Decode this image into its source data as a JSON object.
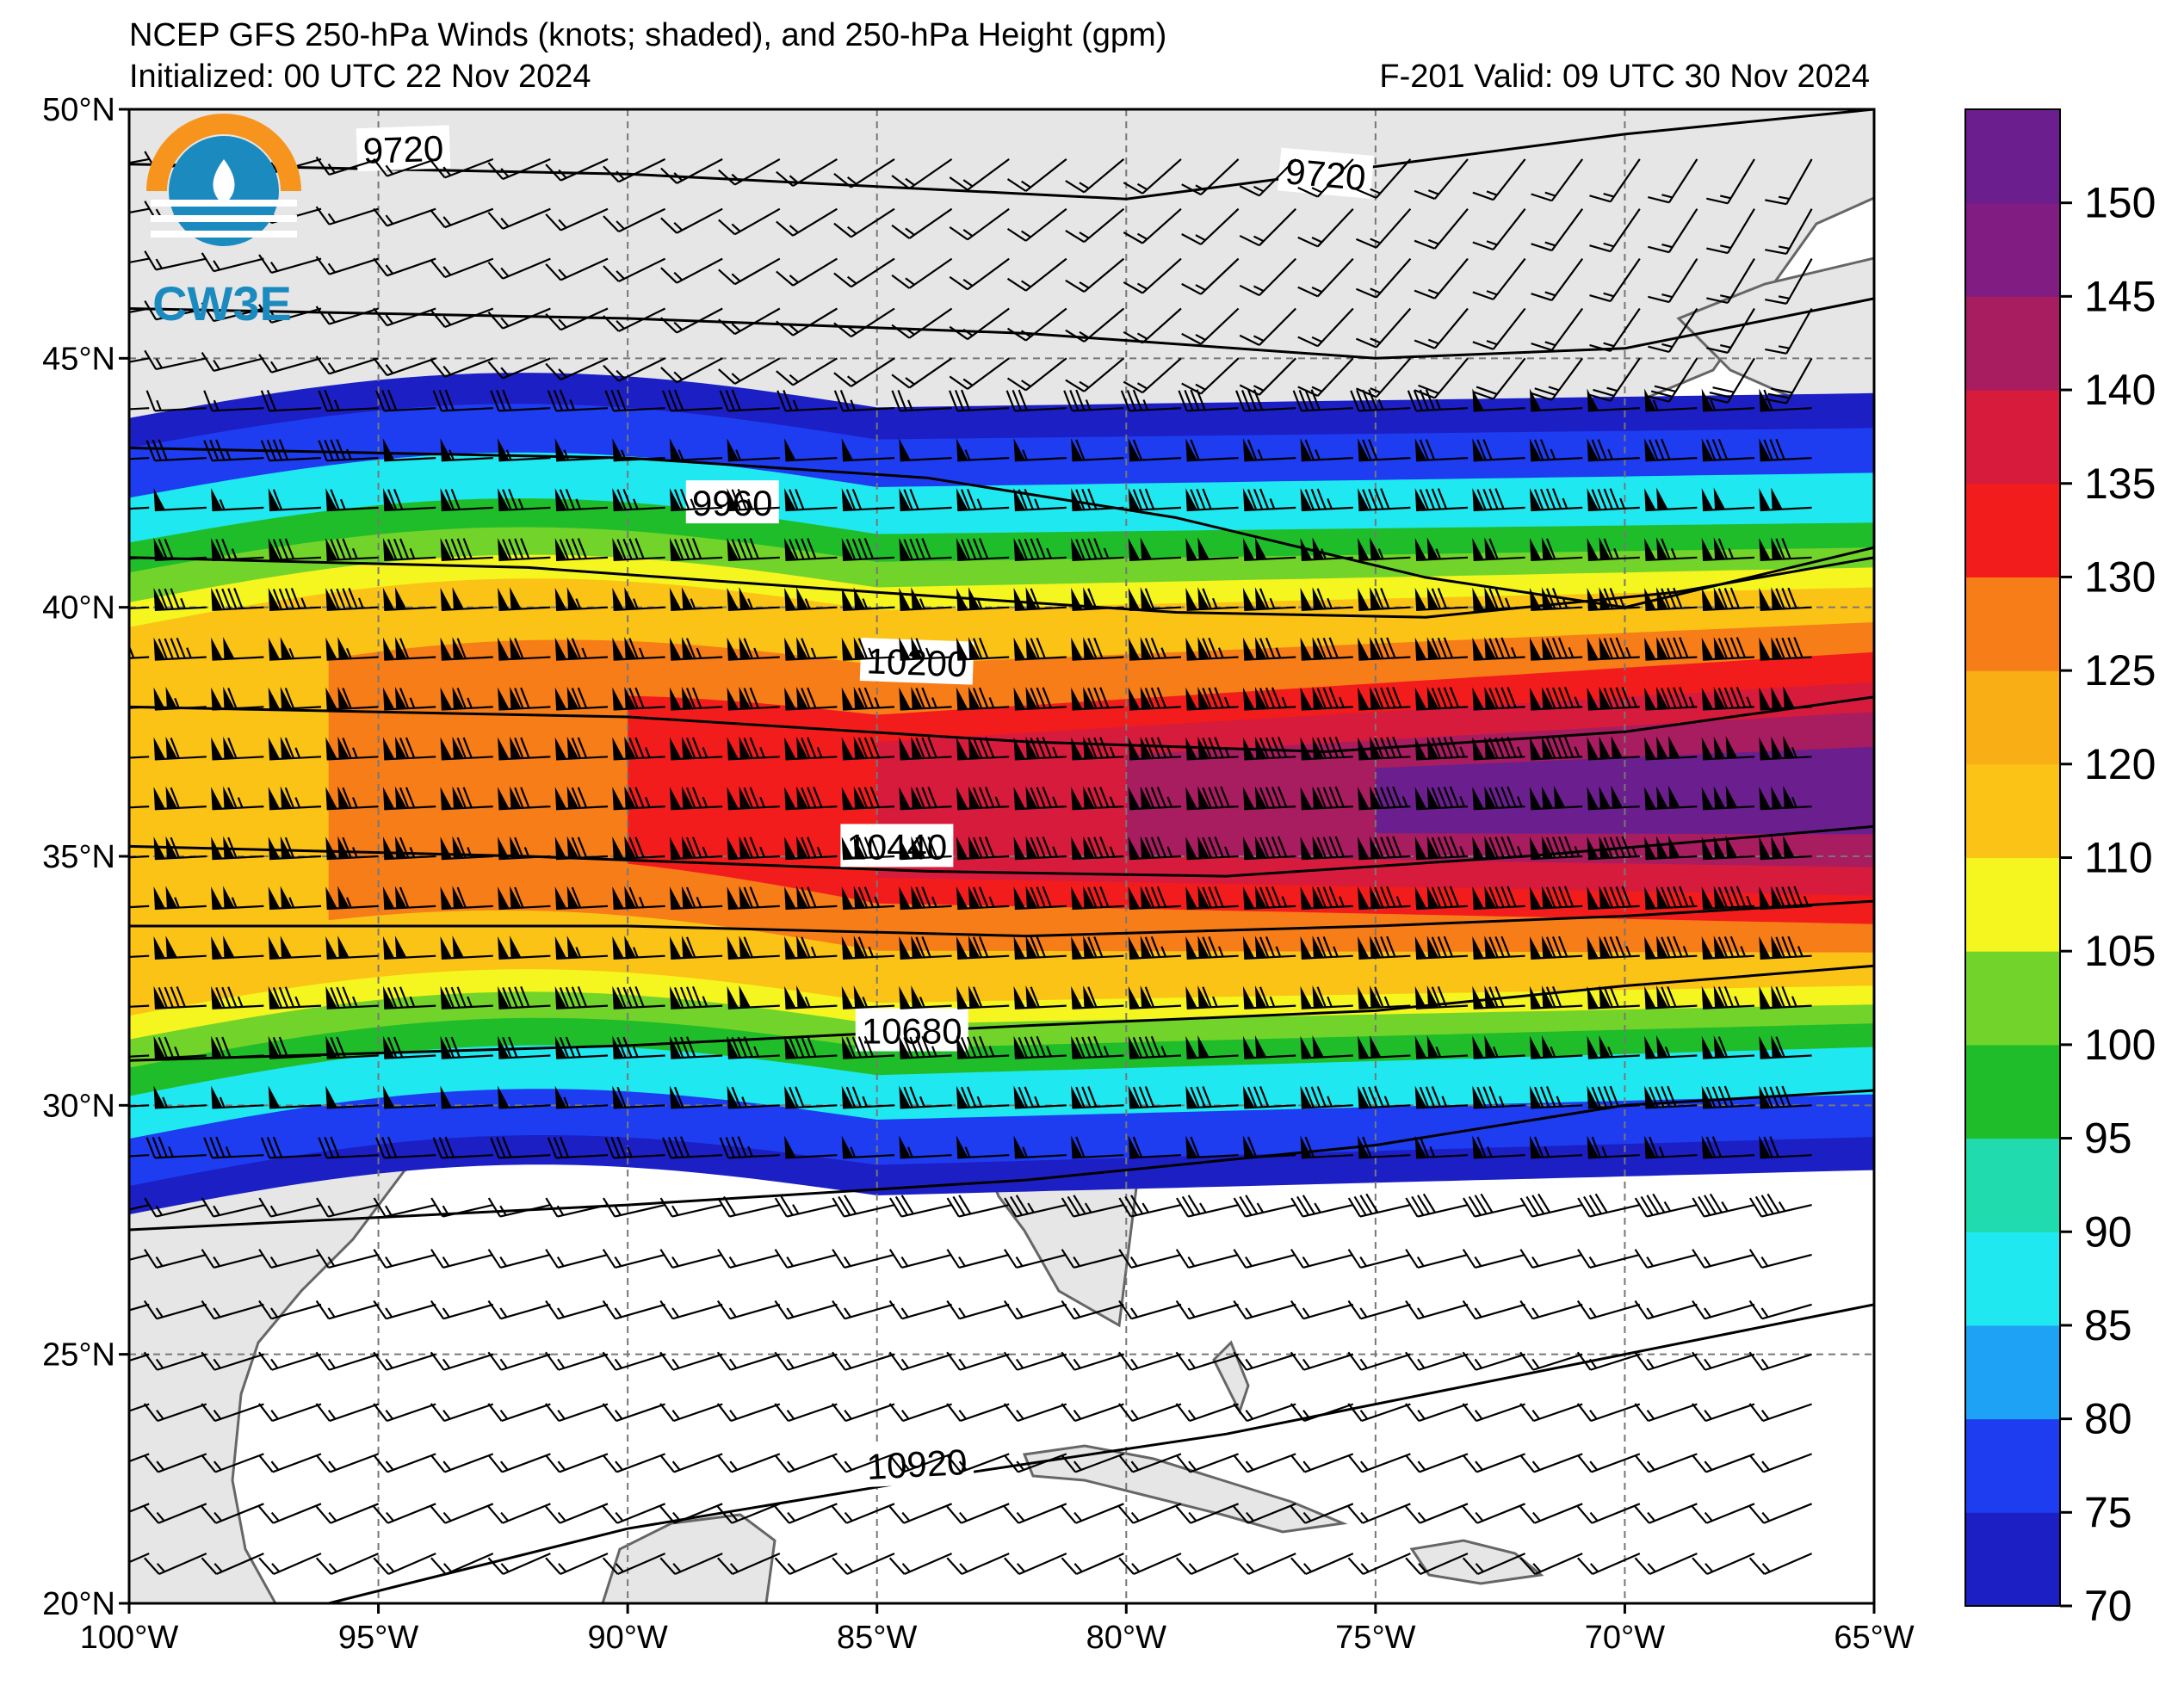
{
  "header": {
    "title": "NCEP GFS 250-hPa Winds (knots; shaded), and 250-hPa Height (gpm)",
    "initialized": "Initialized: 00 UTC 22 Nov 2024",
    "valid": "F-201  Valid: 09 UTC 30 Nov 2024"
  },
  "logo": {
    "text": "CW3E",
    "color_orange": "#f7941d",
    "color_blue": "#1b8bbf"
  },
  "map": {
    "lon_range": [
      -100,
      -65
    ],
    "lat_range": [
      20,
      50
    ],
    "lon_ticks": [
      "100°W",
      "95°W",
      "90°W",
      "85°W",
      "80°W",
      "75°W",
      "70°W",
      "65°W"
    ],
    "lat_ticks": [
      "20°N",
      "25°N",
      "30°N",
      "35°N",
      "40°N",
      "45°N",
      "50°N"
    ],
    "grid": true,
    "land_color": "#e6e6e6",
    "coast_color": "#666666"
  },
  "contours": {
    "labels": [
      "9720",
      "9720",
      "9960",
      "10200",
      "10440",
      "10680",
      "10920"
    ]
  },
  "colorbar": {
    "ticks": [
      "70",
      "75",
      "80",
      "85",
      "90",
      "95",
      "100",
      "105",
      "110",
      "120",
      "125",
      "130",
      "135",
      "140",
      "145",
      "150"
    ],
    "colors": [
      "#1c1fc4",
      "#1e3cf0",
      "#1ea2f5",
      "#20e8f0",
      "#20dbad",
      "#20bd2a",
      "#72d42a",
      "#f5f520",
      "#fbc316",
      "#f9ae16",
      "#f67d18",
      "#f21c1c",
      "#d71b3c",
      "#a81c60",
      "#801c82",
      "#6b1f8f"
    ]
  },
  "chart_data": {
    "type": "heatmap",
    "title": "NCEP GFS 250-hPa Winds (knots; shaded), and 250-hPa Height (gpm)",
    "xlabel": "",
    "ylabel": "",
    "xlim": [
      -100,
      -65
    ],
    "ylim": [
      20,
      50
    ],
    "wind_speed_levels_kt": [
      70,
      75,
      80,
      85,
      90,
      95,
      100,
      105,
      110,
      120,
      125,
      130,
      135,
      140,
      145,
      150
    ],
    "jet_max": {
      "lon": -70,
      "lat": 35,
      "speed_kt_min": 150
    },
    "height_contours_gpm": [
      9720,
      9960,
      10200,
      10440,
      10680,
      10920
    ]
  }
}
